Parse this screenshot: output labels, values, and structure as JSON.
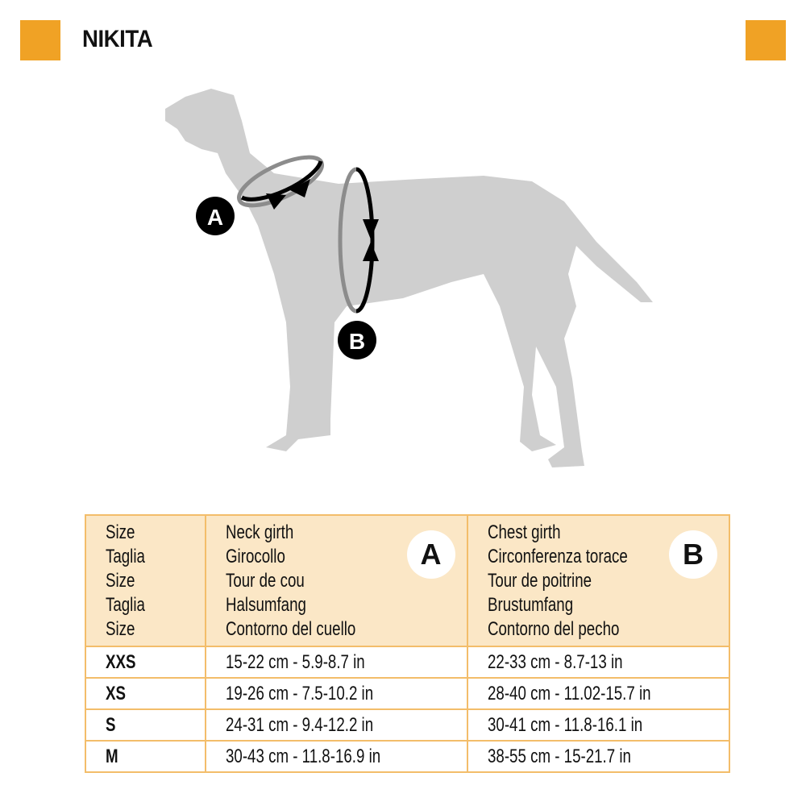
{
  "title": "NIKITA",
  "accent_color": "#f0a225",
  "diagram": {
    "marker_a": "A",
    "marker_b": "B"
  },
  "table": {
    "headers": {
      "size": [
        "Size",
        "Taglia",
        "Size",
        "Taglia",
        "Size"
      ],
      "neck": [
        "Neck girth",
        "Girocollo",
        "Tour de cou",
        "Halsumfang",
        "Contorno del cuello"
      ],
      "neck_badge": "A",
      "chest": [
        "Chest girth",
        "Circonferenza torace",
        "Tour de poitrine",
        "Brustumfang",
        "Contorno del pecho"
      ],
      "chest_badge": "B"
    },
    "rows": [
      {
        "size": "XXS",
        "neck": "15-22 cm - 5.9-8.7 in",
        "chest": "22-33 cm - 8.7-13 in"
      },
      {
        "size": "XS",
        "neck": "19-26 cm - 7.5-10.2 in",
        "chest": "28-40 cm - 11.02-15.7 in"
      },
      {
        "size": "S",
        "neck": "24-31 cm - 9.4-12.2 in",
        "chest": "30-41 cm - 11.8-16.1 in"
      },
      {
        "size": "M",
        "neck": "30-43 cm - 11.8-16.9 in",
        "chest": "38-55 cm - 15-21.7 in"
      }
    ]
  }
}
